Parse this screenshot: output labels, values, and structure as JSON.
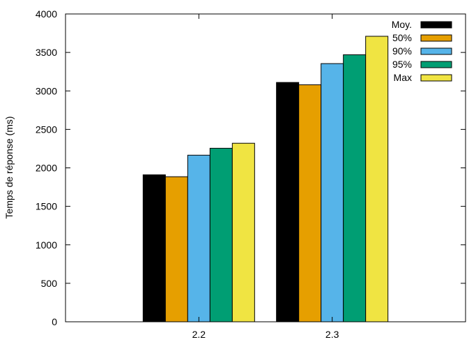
{
  "chart_data": {
    "type": "bar",
    "categories": [
      "2.2",
      "2.3"
    ],
    "series": [
      {
        "name": "Moy.",
        "color": "#000000",
        "values": [
          1910,
          3110
        ]
      },
      {
        "name": "50%",
        "color": "#e69f00",
        "values": [
          1885,
          3080
        ]
      },
      {
        "name": "90%",
        "color": "#56b4e9",
        "values": [
          2165,
          3355
        ]
      },
      {
        "name": "95%",
        "color": "#009e73",
        "values": [
          2255,
          3470
        ]
      },
      {
        "name": "Max",
        "color": "#f0e442",
        "values": [
          2320,
          3710
        ]
      }
    ],
    "ylabel": "Temps de réponse (ms)",
    "xlabel": "",
    "ylim": [
      0,
      4000
    ],
    "yticks": [
      "0",
      "500",
      "1000",
      "1500",
      "2000",
      "2500",
      "3000",
      "3500",
      "4000"
    ],
    "grid": false,
    "legend_position": "top-right"
  }
}
